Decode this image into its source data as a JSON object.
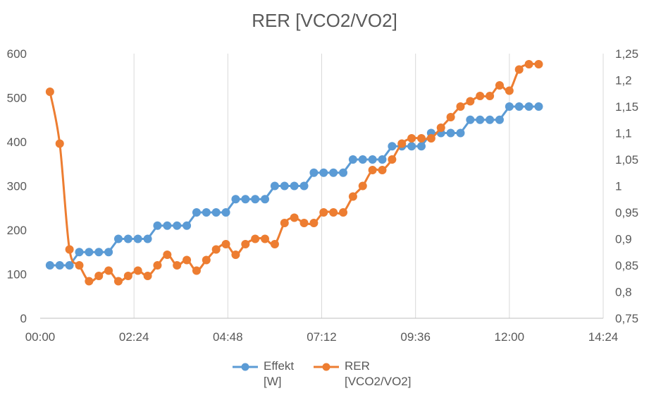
{
  "chart_data": {
    "type": "line",
    "title": "RER [VCO2/VO2]",
    "xlabel": "",
    "ylabel": "",
    "x_axis": {
      "min_minutes": 0,
      "max_minutes": 864,
      "ticks": [
        "00:00",
        "02:24",
        "04:48",
        "07:12",
        "09:36",
        "12:00",
        "14:24"
      ]
    },
    "y_left": {
      "min": 0,
      "max": 600,
      "ticks": [
        "0",
        "100",
        "200",
        "300",
        "400",
        "500",
        "600"
      ]
    },
    "y_right": {
      "min": 0.75,
      "max": 1.25,
      "ticks": [
        "0,75",
        "0,8",
        "0,85",
        "0,9",
        "0,95",
        "1",
        "1,05",
        "1,1",
        "1,15",
        "1,2",
        "1,25"
      ]
    },
    "grid": "vertical",
    "legend_position": "bottom",
    "series": [
      {
        "name": "Effekt [W]",
        "axis": "left",
        "color": "#5B9BD5",
        "x": [
          "00:15",
          "00:30",
          "00:45",
          "01:00",
          "01:15",
          "01:30",
          "01:45",
          "02:00",
          "02:15",
          "02:30",
          "02:45",
          "03:00",
          "03:15",
          "03:30",
          "03:45",
          "04:00",
          "04:15",
          "04:30",
          "04:45",
          "05:00",
          "05:15",
          "05:30",
          "05:45",
          "06:00",
          "06:15",
          "06:30",
          "06:45",
          "07:00",
          "07:15",
          "07:30",
          "07:45",
          "08:00",
          "08:15",
          "08:30",
          "08:45",
          "09:00",
          "09:15",
          "09:30",
          "09:45",
          "10:00",
          "10:15",
          "10:30",
          "10:45",
          "11:00",
          "11:15",
          "11:30",
          "11:45",
          "12:00",
          "12:15",
          "12:30",
          "12:45"
        ],
        "values": [
          120,
          120,
          120,
          150,
          150,
          150,
          150,
          180,
          180,
          180,
          180,
          210,
          210,
          210,
          210,
          240,
          240,
          240,
          240,
          270,
          270,
          270,
          270,
          300,
          300,
          300,
          300,
          330,
          330,
          330,
          330,
          360,
          360,
          360,
          360,
          390,
          390,
          390,
          390,
          420,
          420,
          420,
          420,
          450,
          450,
          450,
          450,
          480,
          480,
          480,
          480
        ]
      },
      {
        "name": "RER [VCO2/VO2]",
        "axis": "right",
        "color": "#ED7D31",
        "x": [
          "00:15",
          "00:30",
          "00:45",
          "01:00",
          "01:15",
          "01:30",
          "01:45",
          "02:00",
          "02:15",
          "02:30",
          "02:45",
          "03:00",
          "03:15",
          "03:30",
          "03:45",
          "04:00",
          "04:15",
          "04:30",
          "04:45",
          "05:00",
          "05:15",
          "05:30",
          "05:45",
          "06:00",
          "06:15",
          "06:30",
          "06:45",
          "07:00",
          "07:15",
          "07:30",
          "07:45",
          "08:00",
          "08:15",
          "08:30",
          "08:45",
          "09:00",
          "09:15",
          "09:30",
          "09:45",
          "10:00",
          "10:15",
          "10:30",
          "10:45",
          "11:00",
          "11:15",
          "11:30",
          "11:45",
          "12:00",
          "12:15",
          "12:30",
          "12:45"
        ],
        "values": [
          1.178,
          1.08,
          0.88,
          0.85,
          0.82,
          0.83,
          0.84,
          0.82,
          0.83,
          0.84,
          0.83,
          0.85,
          0.87,
          0.85,
          0.86,
          0.84,
          0.86,
          0.88,
          0.89,
          0.87,
          0.89,
          0.9,
          0.9,
          0.89,
          0.93,
          0.94,
          0.93,
          0.93,
          0.95,
          0.95,
          0.95,
          0.98,
          1.0,
          1.03,
          1.03,
          1.05,
          1.08,
          1.09,
          1.09,
          1.09,
          1.11,
          1.13,
          1.15,
          1.16,
          1.17,
          1.17,
          1.19,
          1.18,
          1.22,
          1.23,
          1.23
        ]
      }
    ]
  },
  "legend": {
    "effekt_label": "Effekt\n[W]",
    "rer_label": "RER\n[VCO2/VO2]"
  }
}
